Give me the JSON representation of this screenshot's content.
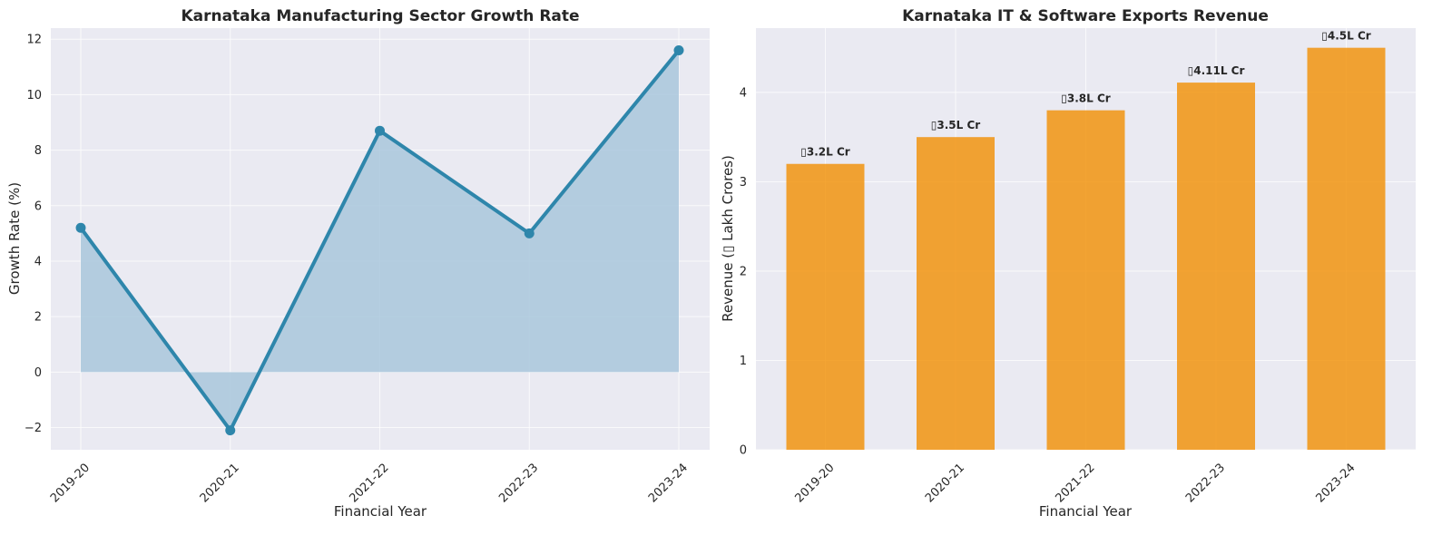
{
  "chart_data": [
    {
      "type": "area",
      "title": "Karnataka Manufacturing Sector Growth Rate",
      "xlabel": "Financial Year",
      "ylabel": "Growth Rate (%)",
      "categories": [
        "2019-20",
        "2020-21",
        "2021-22",
        "2022-23",
        "2023-24"
      ],
      "values": [
        5.2,
        -2.1,
        8.7,
        5.0,
        11.6
      ],
      "ylim": [
        -2.8,
        12.4
      ],
      "yticks": [
        -2,
        0,
        2,
        4,
        6,
        8,
        10,
        12
      ],
      "ytick_labels": [
        "−2",
        "0",
        "2",
        "4",
        "6",
        "8",
        "10",
        "12"
      ],
      "line_color": "#2e86ab",
      "fill_color": "#a9c7dc",
      "grid": true
    },
    {
      "type": "bar",
      "title": "Karnataka IT & Software Exports Revenue",
      "xlabel": "Financial Year",
      "ylabel": "Revenue (▯ Lakh Crores)",
      "categories": [
        "2019-20",
        "2020-21",
        "2021-22",
        "2022-23",
        "2023-24"
      ],
      "values": [
        3.2,
        3.5,
        3.8,
        4.11,
        4.5
      ],
      "data_labels": [
        "▯3.2L Cr",
        "▯3.5L Cr",
        "▯3.8L Cr",
        "▯4.11L Cr",
        "▯4.5L Cr"
      ],
      "ylim": [
        0,
        4.72
      ],
      "yticks": [
        0,
        1,
        2,
        3,
        4
      ],
      "ytick_labels": [
        "0",
        "1",
        "2",
        "3",
        "4"
      ],
      "bar_color": "#f18f01",
      "grid": true
    }
  ]
}
